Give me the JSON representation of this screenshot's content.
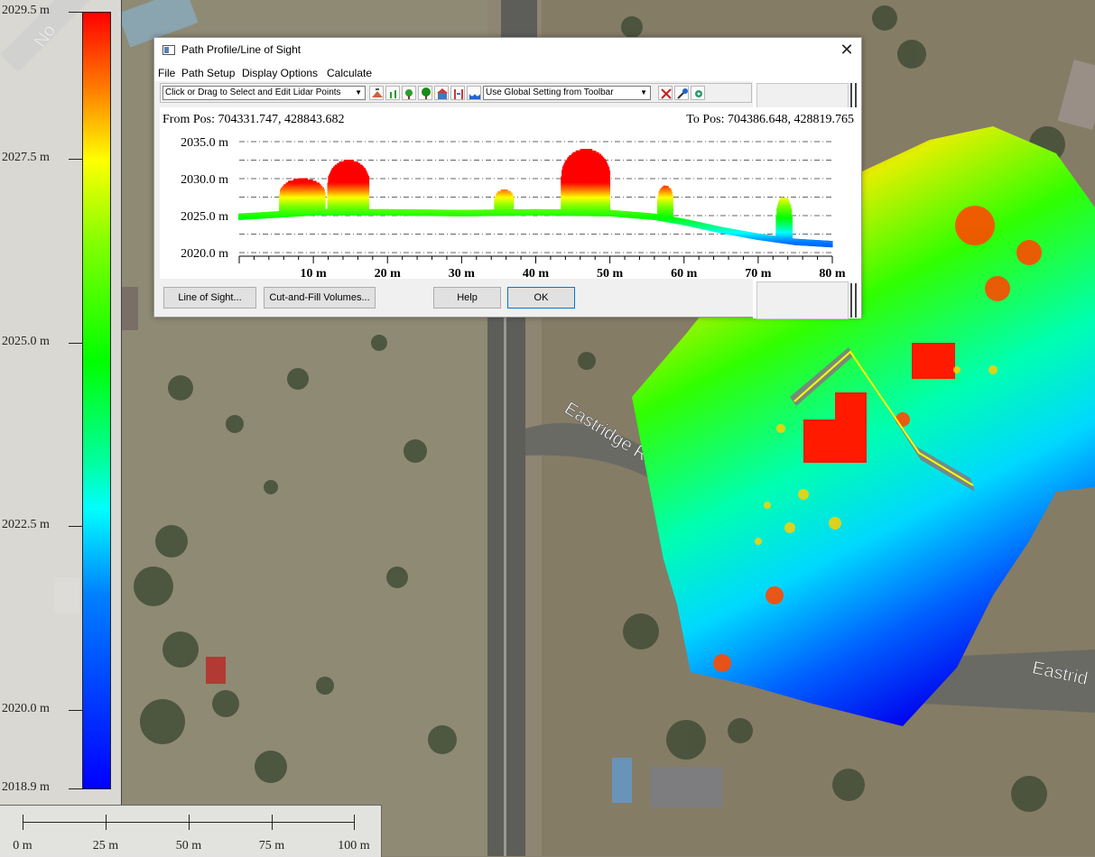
{
  "legend": {
    "labels": [
      "2029.5 m",
      "2027.5 m",
      "2025.0 m",
      "2022.5 m",
      "2020.0 m",
      "2018.9 m"
    ]
  },
  "scale_bar": {
    "labels": [
      "0 m",
      "25 m",
      "50 m",
      "75 m",
      "100 m"
    ]
  },
  "map": {
    "road_labels": [
      "Eastridge R",
      "Eastrid"
    ],
    "partial_label": "No"
  },
  "dialog": {
    "title": "Path Profile/Line of Sight",
    "menu": [
      "File",
      "Path Setup",
      "Display Options",
      "Calculate"
    ],
    "toolbar": {
      "lidar_mode_select": "Click or Drag to Select and Edit Lidar Points",
      "global_setting_select": "Use Global Setting from Toolbar"
    },
    "from_pos": "From Pos: 704331.747, 428843.682",
    "to_pos": "To Pos: 704386.648, 428819.765",
    "buttons": {
      "line_of_sight": "Line of Sight...",
      "cut_fill": "Cut-and-Fill Volumes...",
      "help": "Help",
      "ok": "OK"
    }
  },
  "chart_data": {
    "type": "scatter",
    "title": "",
    "xlabel": "",
    "ylabel": "",
    "xlim": [
      0,
      80
    ],
    "ylim": [
      2020,
      2035
    ],
    "x_ticks": [
      10,
      20,
      30,
      40,
      50,
      60,
      70,
      80
    ],
    "x_tick_labels": [
      "10 m",
      "20 m",
      "30 m",
      "40 m",
      "50 m",
      "60 m",
      "70 m",
      "80 m"
    ],
    "y_ticks": [
      2020,
      2025,
      2030,
      2035
    ],
    "y_tick_labels": [
      "2020.0 m",
      "2025.0 m",
      "2030.0 m",
      "2035.0 m"
    ],
    "grid": "horizontal dash-dot",
    "ground_profile": {
      "x": [
        0,
        5,
        10,
        20,
        30,
        40,
        50,
        56,
        60,
        65,
        70,
        75,
        80
      ],
      "y": [
        2025.0,
        2025.3,
        2025.6,
        2025.6,
        2025.5,
        2025.6,
        2025.5,
        2025.0,
        2024.3,
        2023.2,
        2022.3,
        2021.6,
        2021.3
      ]
    },
    "vegetation_clusters": [
      {
        "x_start": 5.5,
        "x_end": 11.5,
        "top": 2030.0
      },
      {
        "x_start": 12.0,
        "x_end": 17.5,
        "top": 2032.5
      },
      {
        "x_start": 34.5,
        "x_end": 37.0,
        "top": 2028.5
      },
      {
        "x_start": 43.5,
        "x_end": 50.0,
        "top": 2034.0
      },
      {
        "x_start": 56.5,
        "x_end": 58.5,
        "top": 2029.0
      },
      {
        "x_start": 72.5,
        "x_end": 74.5,
        "top": 2027.5
      }
    ]
  }
}
